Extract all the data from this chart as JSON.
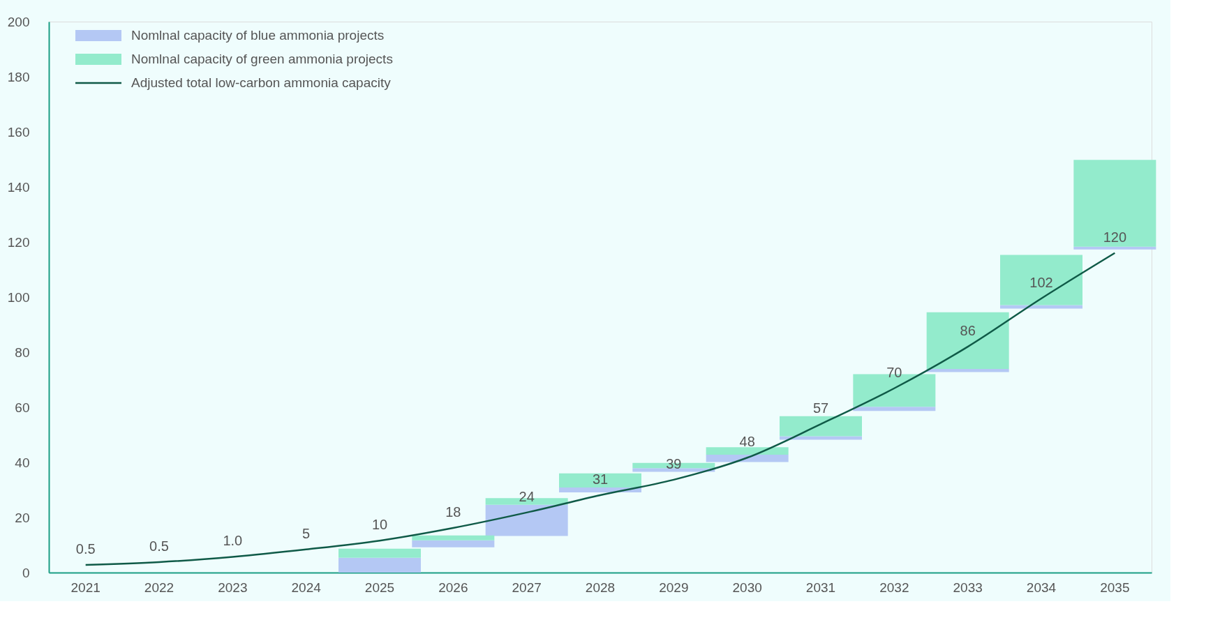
{
  "chart_data": {
    "type": "bar",
    "legend": "top left",
    "grid": false,
    "categories": [
      "2021",
      "2022",
      "2023",
      "2024",
      "2025",
      "2026",
      "2027",
      "2028",
      "2029",
      "2030",
      "2031",
      "2032",
      "2033",
      "2034",
      "2035"
    ],
    "series": [
      {
        "name": "Nomlnal capacity of blue ammonia projects",
        "color": "#b4c8f4",
        "base": [
          null,
          null,
          null,
          null,
          0,
          9.2,
          13.3,
          29.1,
          36.6,
          40.1,
          48.2,
          58.7,
          72.8,
          95.8,
          117.3
        ],
        "values": [
          null,
          null,
          null,
          null,
          5.4,
          2.5,
          11.3,
          1.8,
          1.3,
          2.7,
          1.3,
          1.5,
          1.1,
          1.3,
          1.0
        ]
      },
      {
        "name": "Nomlnal capacity of green ammonia projects",
        "color": "#93ebcc",
        "base": [
          null,
          null,
          null,
          null,
          5.4,
          11.7,
          24.6,
          30.9,
          37.9,
          42.8,
          49.5,
          60.2,
          73.9,
          97.1,
          118.3
        ],
        "values": [
          null,
          null,
          null,
          null,
          3.3,
          1.8,
          2.4,
          5.1,
          1.9,
          2.7,
          7.3,
          11.8,
          20.6,
          18.2,
          31.5
        ]
      },
      {
        "name": "Adjusted total low-carbon ammonia capacity",
        "type": "line",
        "line_style": "solid",
        "color": "#0f5a47",
        "values": [
          2.8,
          3.8,
          5.7,
          8.4,
          11.6,
          16.2,
          21.8,
          28.1,
          33.7,
          41.7,
          53.9,
          66.9,
          82.0,
          99.5,
          116.0
        ]
      }
    ],
    "ylim": [
      0,
      200
    ],
    "yticks": [
      0,
      20,
      40,
      60,
      80,
      100,
      120,
      140,
      160,
      180,
      200
    ],
    "annotations": [
      "0.5",
      "0.5",
      "1.0",
      "5",
      "10",
      "18",
      "24",
      "31",
      "39",
      "48",
      "57",
      "70",
      "86",
      "102",
      "120"
    ]
  }
}
